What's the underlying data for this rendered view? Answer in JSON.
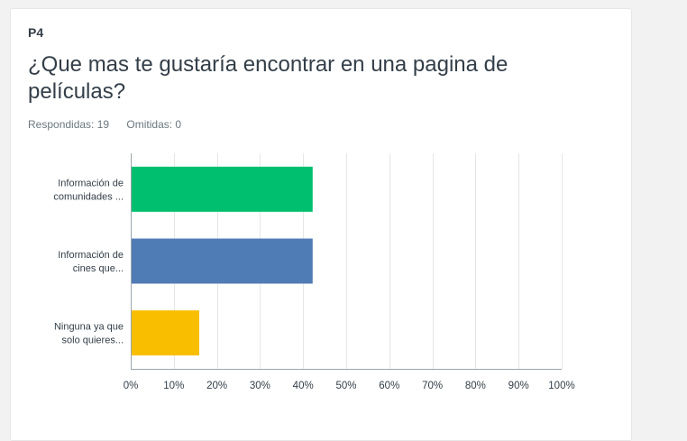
{
  "question": {
    "number": "P4",
    "title": "¿Que mas te gustaría encontrar en una pagina de películas?",
    "answered": "Respondidas: 19",
    "skipped": "Omitidas: 0"
  },
  "chart_data": {
    "type": "bar",
    "orientation": "horizontal",
    "categories": [
      [
        "Información de",
        "comunidades ..."
      ],
      [
        "Información de",
        "cines que..."
      ],
      [
        "Ninguna ya que",
        "solo quieres..."
      ]
    ],
    "values": [
      42.11,
      42.11,
      15.79
    ],
    "colors": [
      "#00bf6f",
      "#507cb6",
      "#f9be00"
    ],
    "xlim": [
      0,
      100
    ],
    "xticks": [
      0,
      10,
      20,
      30,
      40,
      50,
      60,
      70,
      80,
      90,
      100
    ],
    "xtick_labels": [
      "0%",
      "10%",
      "20%",
      "30%",
      "40%",
      "50%",
      "60%",
      "70%",
      "80%",
      "90%",
      "100%"
    ],
    "grid": true,
    "legend": "none"
  }
}
